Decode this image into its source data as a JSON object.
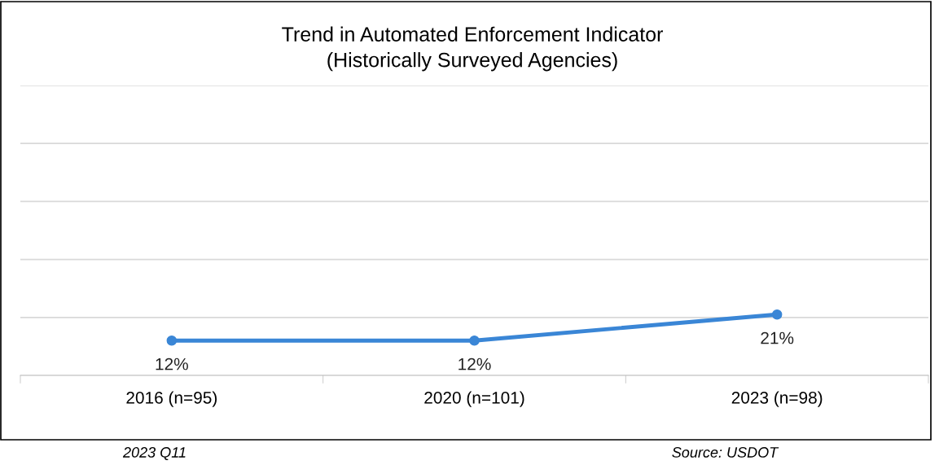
{
  "chart_data": {
    "type": "line",
    "title": "Trend in Automated Enforcement Indicator\n(Historically Surveyed Agencies)",
    "categories": [
      "2016 (n=95)",
      "2020 (n=101)",
      "2023 (n=98)"
    ],
    "series": [
      {
        "color": "#3a86d6",
        "values": [
          12,
          12,
          21
        ],
        "value_labels": [
          "12%",
          "12%",
          "21%"
        ]
      }
    ],
    "ylim": [
      0,
      100
    ],
    "yticks": [
      {
        "value": 0,
        "label": null
      },
      {
        "value": 20,
        "label": null
      },
      {
        "value": 40,
        "label": null
      },
      {
        "value": 60,
        "label": null
      },
      {
        "value": 80,
        "label": null
      },
      {
        "value": 100,
        "label": null
      }
    ],
    "tick_labels": "x",
    "grid": "y",
    "marker": "circle",
    "line_style": "solid",
    "legend": false,
    "annotations": [
      "2023 Q11",
      "Source: USDOT"
    ]
  }
}
